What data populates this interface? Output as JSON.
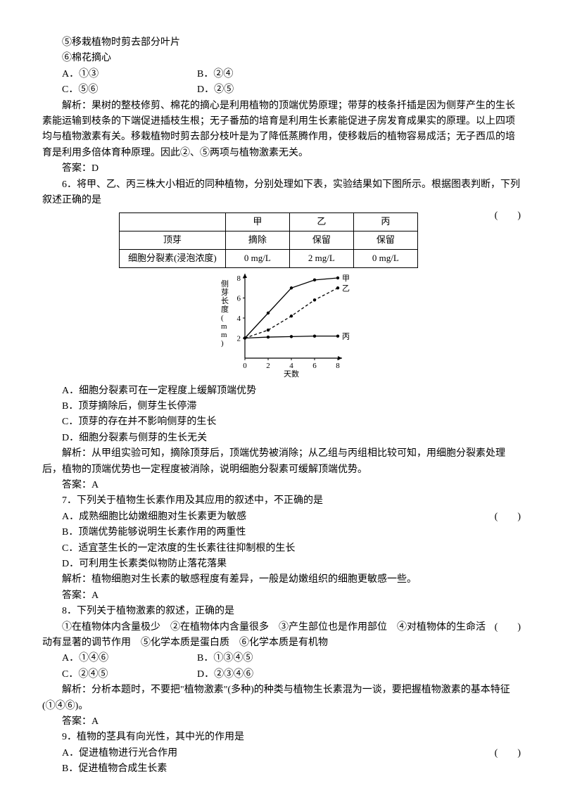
{
  "intro": {
    "item5": "⑤移栽植物时剪去部分叶片",
    "item6": "⑥棉花摘心",
    "optA": "A．①③",
    "optB": "B．②④",
    "optC": "C．⑤⑥",
    "optD": "D．②⑤",
    "explain": "解析：果树的整枝修剪、棉花的摘心是利用植物的顶端优势原理；带芽的枝条扦插是因为侧芽产生的生长素能运输到枝条的下端促进插枝生根；无子番茄的培育是利用生长素能促进子房发育成果实的原理。以上四项均与植物激素有关。移栽植物时剪去部分枝叶是为了降低蒸腾作用，使移栽后的植物容易成活；无子西瓜的培育是利用多倍体育种原理。因此②、⑤两项与植物激素无关。",
    "answer": "答案：D"
  },
  "q6": {
    "stem": "6．将甲、乙、丙三株大小相近的同种植物，分别处理如下表，实验结果如下图所示。根据图表判断，下列叙述正确的是",
    "paren": "(　　)",
    "table": {
      "cols": [
        "",
        "甲",
        "乙",
        "丙"
      ],
      "row1": [
        "顶芽",
        "摘除",
        "保留",
        "保留"
      ],
      "row2": [
        "细胞分裂素(浸泡浓度)",
        "0 mg/L",
        "2 mg/L",
        "0 mg/L"
      ]
    },
    "chart": {
      "type": "line",
      "width": 180,
      "height": 140,
      "background_color": "#ffffff",
      "axis_color": "#000000",
      "ylabel": "侧芽长度(mm)",
      "xlabel": "天数",
      "xlim": [
        0,
        8
      ],
      "ylim": [
        0,
        8
      ],
      "xticks": [
        0,
        2,
        4,
        6,
        8
      ],
      "yticks": [
        2,
        4,
        6,
        8
      ],
      "label_fontsize": 11,
      "series": [
        {
          "name": "甲",
          "color": "#000000",
          "marker": "circle",
          "x": [
            0,
            2,
            4,
            6,
            8
          ],
          "y": [
            2,
            4.5,
            7,
            7.8,
            8
          ]
        },
        {
          "name": "乙",
          "color": "#000000",
          "marker": "circle",
          "dash": "4,3",
          "x": [
            0,
            2,
            4,
            6,
            8
          ],
          "y": [
            2,
            2.8,
            4.2,
            5.8,
            7
          ]
        },
        {
          "name": "丙",
          "color": "#000000",
          "marker": "circle",
          "x": [
            0,
            2,
            4,
            6,
            8
          ],
          "y": [
            2,
            2.1,
            2.15,
            2.2,
            2.2
          ]
        }
      ]
    },
    "optA": "A．细胞分裂素可在一定程度上缓解顶端优势",
    "optB": "B．顶芽摘除后，侧芽生长停滞",
    "optC": "C．顶芽的存在并不影响侧芽的生长",
    "optD": "D．细胞分裂素与侧芽的生长无关",
    "explain": "解析：从甲组实验可知，摘除顶芽后，顶端优势被消除；从乙组与丙组相比较可知，用细胞分裂素处理后，植物的顶端优势也一定程度被消除，说明细胞分裂素可缓解顶端优势。",
    "answer": "答案：A"
  },
  "q7": {
    "stem": "7．下列关于植物生长素作用及其应用的叙述中，不正确的是",
    "paren": "(　　)",
    "optA": "A．成熟细胞比幼嫩细胞对生长素更为敏感",
    "optB": "B．顶端优势能够说明生长素作用的两重性",
    "optC": "C．适宜茎生长的一定浓度的生长素往往抑制根的生长",
    "optD": "D．可利用生长素类似物防止落花落果",
    "explain": "解析：植物细胞对生长素的敏感程度有差异，一般是幼嫩组织的细胞更敏感一些。",
    "answer": "答案：A"
  },
  "q8": {
    "stem": "8．下列关于植物激素的叙述，正确的是",
    "paren": "(　　)",
    "items": "①在植物体内含量极少　②在植物体内含量很多　③产生部位也是作用部位　④对植物体的生命活动有显著的调节作用　⑤化学本质是蛋白质　⑥化学本质是有机物",
    "optA": "A．①④⑥",
    "optB": "B．①③④⑤",
    "optC": "C．②④⑤",
    "optD": "D．②③④⑥",
    "explain": "解析：分析本题时，不要把\"植物激素\"(多种)的种类与植物生长素混为一谈，要把握植物激素的基本特征(①④⑥)。",
    "answer": "答案：A"
  },
  "q9": {
    "stem": "9．植物的茎具有向光性，其中光的作用是",
    "paren": "(　　)",
    "optA": "A．促进植物进行光合作用",
    "optB": "B．促进植物合成生长素"
  }
}
